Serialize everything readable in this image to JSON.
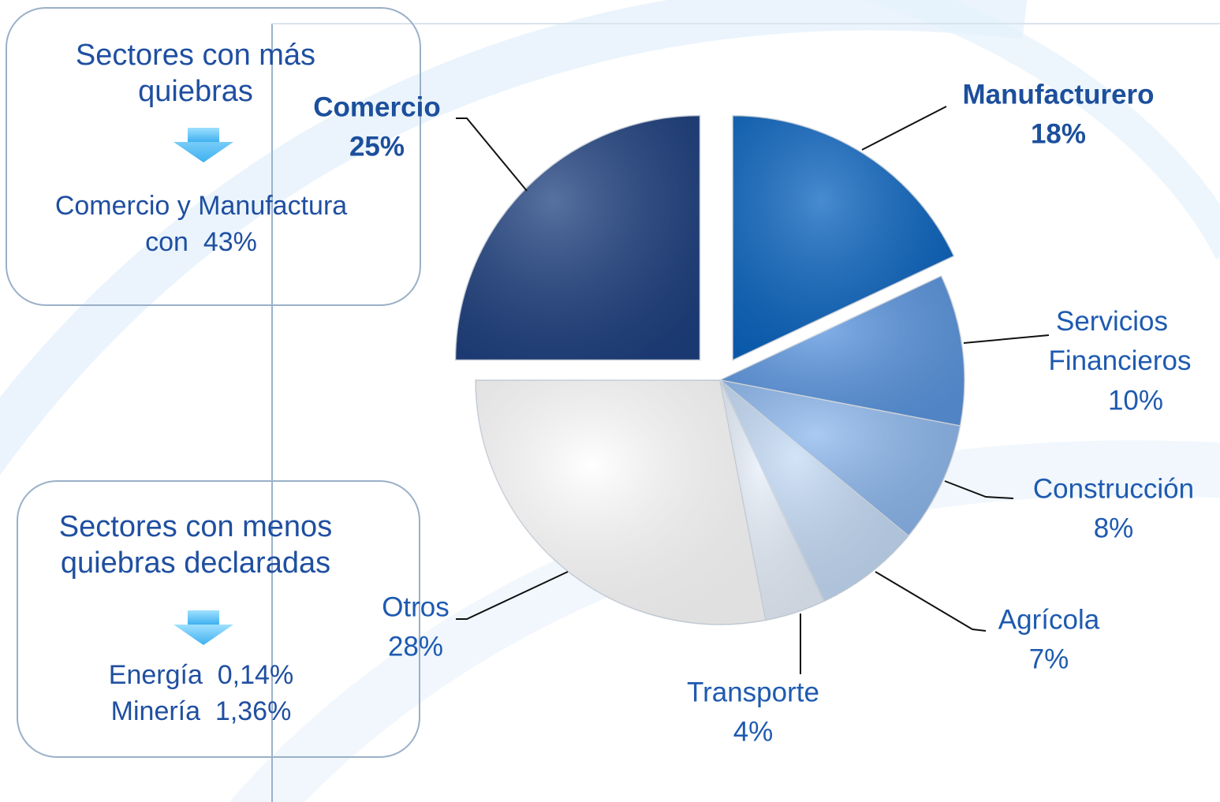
{
  "chart_data": {
    "type": "pie",
    "categories": [
      "Manufacturero",
      "Servicios Financieros",
      "Construcción",
      "Agrícola",
      "Transporte",
      "Otros",
      "Comercio"
    ],
    "values": [
      18,
      10,
      8,
      7,
      4,
      28,
      25
    ],
    "value_labels": [
      "18%",
      "10%",
      "8%",
      "7%",
      "4%",
      "28%",
      "25%"
    ],
    "colors": [
      "#0a64c0",
      "#5b96e0",
      "#8db8ee",
      "#c4dbf6",
      "#e8f1fc",
      "#ffffff",
      "#1f4180"
    ]
  },
  "panels": [
    {
      "title_lines": [
        "Sectores con más",
        "quiebras"
      ],
      "detail_lines": [
        "Comercio y Manufactura",
        "con  43%"
      ]
    },
    {
      "title_lines": [
        "Sectores con menos",
        "quiebras declaradas"
      ],
      "detail_lines": [
        "Energía  0,14%",
        "Minería  1,36%"
      ]
    }
  ]
}
